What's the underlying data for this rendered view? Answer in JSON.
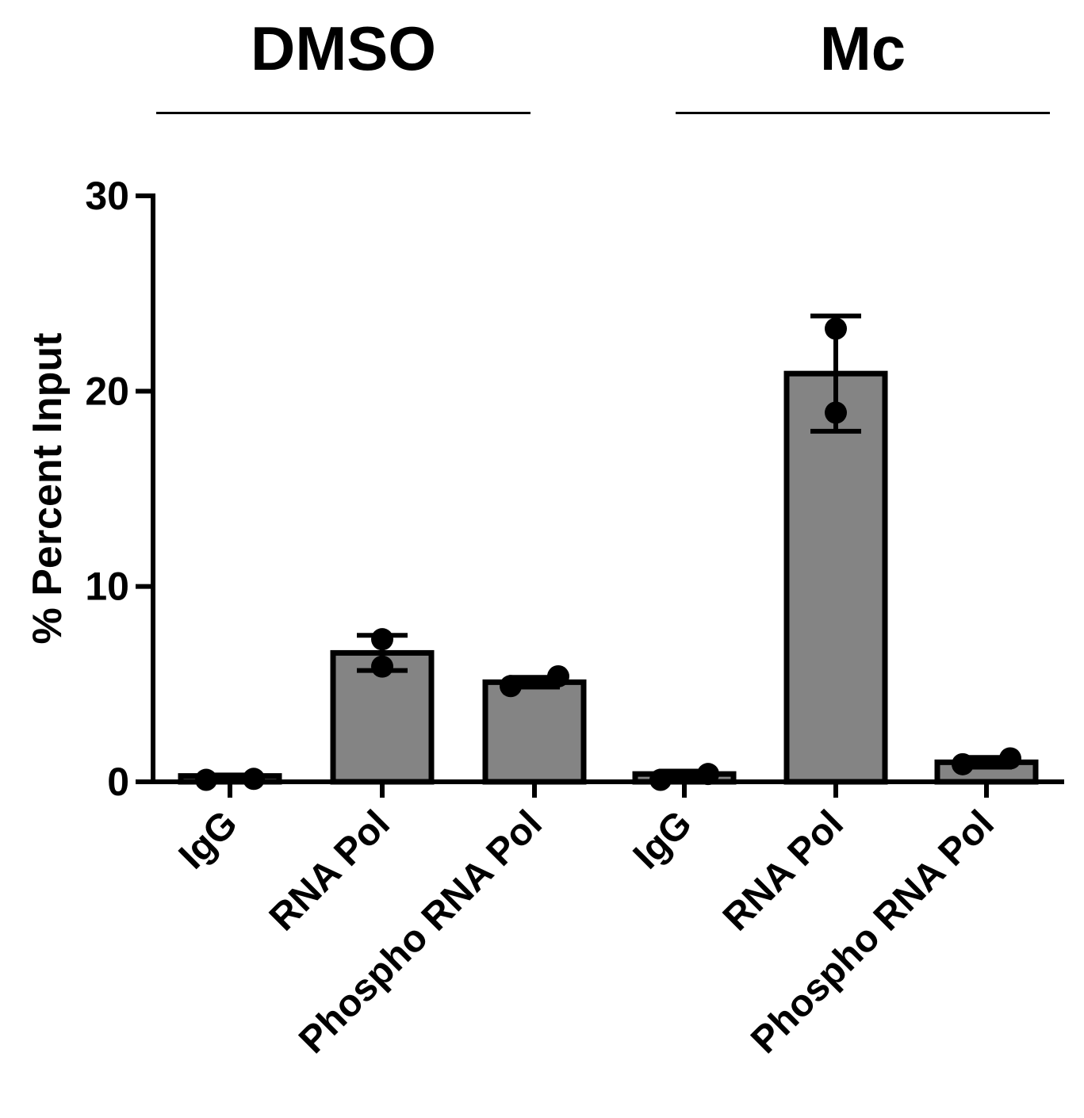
{
  "groups": [
    {
      "label": "DMSO"
    },
    {
      "label": "Mc"
    }
  ],
  "colors": {
    "bar_fill": "#848484",
    "stroke": "#000000",
    "background": "#ffffff"
  },
  "chart_data": {
    "type": "bar",
    "title": "",
    "xlabel": "",
    "ylabel": "% Percent Input",
    "ylim": [
      0,
      30
    ],
    "yticks": [
      0,
      10,
      20,
      30
    ],
    "grid": false,
    "legend": "none",
    "groups": [
      "DMSO",
      "Mc"
    ],
    "categories": [
      "IgG",
      "RNA Pol",
      "Phospho RNA Pol",
      "IgG",
      "RNA Pol",
      "Phospho RNA Pol"
    ],
    "category_group": [
      "DMSO",
      "DMSO",
      "DMSO",
      "Mc",
      "Mc",
      "Mc"
    ],
    "values": [
      0.3,
      6.6,
      5.1,
      0.4,
      20.9,
      1.0
    ],
    "error": [
      0.05,
      0.9,
      0.25,
      0.15,
      2.95,
      0.25
    ],
    "points": [
      [
        0.1,
        0.15
      ],
      [
        7.3,
        5.9
      ],
      [
        4.9,
        5.4
      ],
      [
        0.1,
        0.4
      ],
      [
        23.2,
        18.9
      ],
      [
        0.9,
        1.2
      ]
    ]
  }
}
